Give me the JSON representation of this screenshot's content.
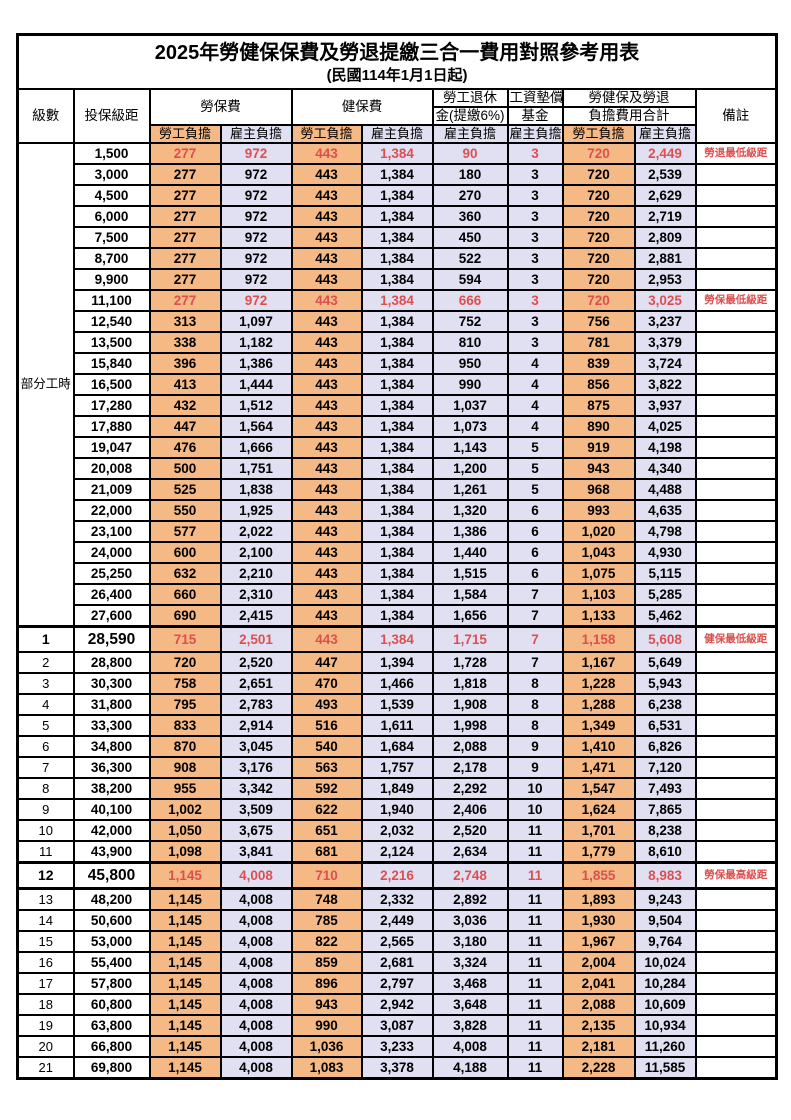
{
  "page": {
    "title": "2025年勞健保保費及勞退提繳三合一費用對照參考用表",
    "subtitle": "(民國114年1月1日起)"
  },
  "colors": {
    "employee_bg": "#F5B985",
    "employer_bg": "#E1E0F2",
    "highlight_red": "#DD4F4F"
  },
  "header": {
    "level": "級數",
    "bracket": "投保級距",
    "labor_insurance": "勞保費",
    "health_insurance": "健保費",
    "pension_line1": "勞工退休",
    "pension_line2": "金(提繳6%)",
    "wage_fund_line1": "工資墊償",
    "wage_fund_line2": "基金",
    "total_line1": "勞健保及勞退",
    "total_line2": "負擔費用合計",
    "remark": "備註",
    "employee_share": "勞工負擔",
    "employer_share": "雇主負擔"
  },
  "group_label": "部分工時",
  "rows": [
    {
      "level": "",
      "bracket": "1,500",
      "labor_emp": "277",
      "labor_er": "972",
      "health_emp": "443",
      "health_er": "1,384",
      "pension_er": "90",
      "fund_er": "3",
      "total_emp": "720",
      "total_er": "2,449",
      "remark": "勞退最低級距",
      "red": true
    },
    {
      "level": "",
      "bracket": "3,000",
      "labor_emp": "277",
      "labor_er": "972",
      "health_emp": "443",
      "health_er": "1,384",
      "pension_er": "180",
      "fund_er": "3",
      "total_emp": "720",
      "total_er": "2,539",
      "remark": ""
    },
    {
      "level": "",
      "bracket": "4,500",
      "labor_emp": "277",
      "labor_er": "972",
      "health_emp": "443",
      "health_er": "1,384",
      "pension_er": "270",
      "fund_er": "3",
      "total_emp": "720",
      "total_er": "2,629",
      "remark": ""
    },
    {
      "level": "",
      "bracket": "6,000",
      "labor_emp": "277",
      "labor_er": "972",
      "health_emp": "443",
      "health_er": "1,384",
      "pension_er": "360",
      "fund_er": "3",
      "total_emp": "720",
      "total_er": "2,719",
      "remark": ""
    },
    {
      "level": "",
      "bracket": "7,500",
      "labor_emp": "277",
      "labor_er": "972",
      "health_emp": "443",
      "health_er": "1,384",
      "pension_er": "450",
      "fund_er": "3",
      "total_emp": "720",
      "total_er": "2,809",
      "remark": ""
    },
    {
      "level": "",
      "bracket": "8,700",
      "labor_emp": "277",
      "labor_er": "972",
      "health_emp": "443",
      "health_er": "1,384",
      "pension_er": "522",
      "fund_er": "3",
      "total_emp": "720",
      "total_er": "2,881",
      "remark": ""
    },
    {
      "level": "",
      "bracket": "9,900",
      "labor_emp": "277",
      "labor_er": "972",
      "health_emp": "443",
      "health_er": "1,384",
      "pension_er": "594",
      "fund_er": "3",
      "total_emp": "720",
      "total_er": "2,953",
      "remark": ""
    },
    {
      "level": "",
      "bracket": "11,100",
      "labor_emp": "277",
      "labor_er": "972",
      "health_emp": "443",
      "health_er": "1,384",
      "pension_er": "666",
      "fund_er": "3",
      "total_emp": "720",
      "total_er": "3,025",
      "remark": "勞保最低級距",
      "red": true
    },
    {
      "level": "",
      "bracket": "12,540",
      "labor_emp": "313",
      "labor_er": "1,097",
      "health_emp": "443",
      "health_er": "1,384",
      "pension_er": "752",
      "fund_er": "3",
      "total_emp": "756",
      "total_er": "3,237",
      "remark": ""
    },
    {
      "level": "",
      "bracket": "13,500",
      "labor_emp": "338",
      "labor_er": "1,182",
      "health_emp": "443",
      "health_er": "1,384",
      "pension_er": "810",
      "fund_er": "3",
      "total_emp": "781",
      "total_er": "3,379",
      "remark": ""
    },
    {
      "level": "",
      "bracket": "15,840",
      "labor_emp": "396",
      "labor_er": "1,386",
      "health_emp": "443",
      "health_er": "1,384",
      "pension_er": "950",
      "fund_er": "4",
      "total_emp": "839",
      "total_er": "3,724",
      "remark": ""
    },
    {
      "level": "",
      "bracket": "16,500",
      "labor_emp": "413",
      "labor_er": "1,444",
      "health_emp": "443",
      "health_er": "1,384",
      "pension_er": "990",
      "fund_er": "4",
      "total_emp": "856",
      "total_er": "3,822",
      "remark": ""
    },
    {
      "level": "",
      "bracket": "17,280",
      "labor_emp": "432",
      "labor_er": "1,512",
      "health_emp": "443",
      "health_er": "1,384",
      "pension_er": "1,037",
      "fund_er": "4",
      "total_emp": "875",
      "total_er": "3,937",
      "remark": ""
    },
    {
      "level": "",
      "bracket": "17,880",
      "labor_emp": "447",
      "labor_er": "1,564",
      "health_emp": "443",
      "health_er": "1,384",
      "pension_er": "1,073",
      "fund_er": "4",
      "total_emp": "890",
      "total_er": "4,025",
      "remark": ""
    },
    {
      "level": "",
      "bracket": "19,047",
      "labor_emp": "476",
      "labor_er": "1,666",
      "health_emp": "443",
      "health_er": "1,384",
      "pension_er": "1,143",
      "fund_er": "5",
      "total_emp": "919",
      "total_er": "4,198",
      "remark": ""
    },
    {
      "level": "",
      "bracket": "20,008",
      "labor_emp": "500",
      "labor_er": "1,751",
      "health_emp": "443",
      "health_er": "1,384",
      "pension_er": "1,200",
      "fund_er": "5",
      "total_emp": "943",
      "total_er": "4,340",
      "remark": ""
    },
    {
      "level": "",
      "bracket": "21,009",
      "labor_emp": "525",
      "labor_er": "1,838",
      "health_emp": "443",
      "health_er": "1,384",
      "pension_er": "1,261",
      "fund_er": "5",
      "total_emp": "968",
      "total_er": "4,488",
      "remark": ""
    },
    {
      "level": "",
      "bracket": "22,000",
      "labor_emp": "550",
      "labor_er": "1,925",
      "health_emp": "443",
      "health_er": "1,384",
      "pension_er": "1,320",
      "fund_er": "6",
      "total_emp": "993",
      "total_er": "4,635",
      "remark": ""
    },
    {
      "level": "",
      "bracket": "23,100",
      "labor_emp": "577",
      "labor_er": "2,022",
      "health_emp": "443",
      "health_er": "1,384",
      "pension_er": "1,386",
      "fund_er": "6",
      "total_emp": "1,020",
      "total_er": "4,798",
      "remark": ""
    },
    {
      "level": "",
      "bracket": "24,000",
      "labor_emp": "600",
      "labor_er": "2,100",
      "health_emp": "443",
      "health_er": "1,384",
      "pension_er": "1,440",
      "fund_er": "6",
      "total_emp": "1,043",
      "total_er": "4,930",
      "remark": ""
    },
    {
      "level": "",
      "bracket": "25,250",
      "labor_emp": "632",
      "labor_er": "2,210",
      "health_emp": "443",
      "health_er": "1,384",
      "pension_er": "1,515",
      "fund_er": "6",
      "total_emp": "1,075",
      "total_er": "5,115",
      "remark": ""
    },
    {
      "level": "",
      "bracket": "26,400",
      "labor_emp": "660",
      "labor_er": "2,310",
      "health_emp": "443",
      "health_er": "1,384",
      "pension_er": "1,584",
      "fund_er": "7",
      "total_emp": "1,103",
      "total_er": "5,285",
      "remark": ""
    },
    {
      "level": "",
      "bracket": "27,600",
      "labor_emp": "690",
      "labor_er": "2,415",
      "health_emp": "443",
      "health_er": "1,384",
      "pension_er": "1,656",
      "fund_er": "7",
      "total_emp": "1,133",
      "total_er": "5,462",
      "remark": ""
    },
    {
      "level": "1",
      "bracket": "28,590",
      "labor_emp": "715",
      "labor_er": "2,501",
      "health_emp": "443",
      "health_er": "1,384",
      "pension_er": "1,715",
      "fund_er": "7",
      "total_emp": "1,158",
      "total_er": "5,608",
      "remark": "健保最低級距",
      "red": true,
      "major": true
    },
    {
      "level": "2",
      "bracket": "28,800",
      "labor_emp": "720",
      "labor_er": "2,520",
      "health_emp": "447",
      "health_er": "1,394",
      "pension_er": "1,728",
      "fund_er": "7",
      "total_emp": "1,167",
      "total_er": "5,649",
      "remark": ""
    },
    {
      "level": "3",
      "bracket": "30,300",
      "labor_emp": "758",
      "labor_er": "2,651",
      "health_emp": "470",
      "health_er": "1,466",
      "pension_er": "1,818",
      "fund_er": "8",
      "total_emp": "1,228",
      "total_er": "5,943",
      "remark": ""
    },
    {
      "level": "4",
      "bracket": "31,800",
      "labor_emp": "795",
      "labor_er": "2,783",
      "health_emp": "493",
      "health_er": "1,539",
      "pension_er": "1,908",
      "fund_er": "8",
      "total_emp": "1,288",
      "total_er": "6,238",
      "remark": ""
    },
    {
      "level": "5",
      "bracket": "33,300",
      "labor_emp": "833",
      "labor_er": "2,914",
      "health_emp": "516",
      "health_er": "1,611",
      "pension_er": "1,998",
      "fund_er": "8",
      "total_emp": "1,349",
      "total_er": "6,531",
      "remark": ""
    },
    {
      "level": "6",
      "bracket": "34,800",
      "labor_emp": "870",
      "labor_er": "3,045",
      "health_emp": "540",
      "health_er": "1,684",
      "pension_er": "2,088",
      "fund_er": "9",
      "total_emp": "1,410",
      "total_er": "6,826",
      "remark": ""
    },
    {
      "level": "7",
      "bracket": "36,300",
      "labor_emp": "908",
      "labor_er": "3,176",
      "health_emp": "563",
      "health_er": "1,757",
      "pension_er": "2,178",
      "fund_er": "9",
      "total_emp": "1,471",
      "total_er": "7,120",
      "remark": ""
    },
    {
      "level": "8",
      "bracket": "38,200",
      "labor_emp": "955",
      "labor_er": "3,342",
      "health_emp": "592",
      "health_er": "1,849",
      "pension_er": "2,292",
      "fund_er": "10",
      "total_emp": "1,547",
      "total_er": "7,493",
      "remark": ""
    },
    {
      "level": "9",
      "bracket": "40,100",
      "labor_emp": "1,002",
      "labor_er": "3,509",
      "health_emp": "622",
      "health_er": "1,940",
      "pension_er": "2,406",
      "fund_er": "10",
      "total_emp": "1,624",
      "total_er": "7,865",
      "remark": ""
    },
    {
      "level": "10",
      "bracket": "42,000",
      "labor_emp": "1,050",
      "labor_er": "3,675",
      "health_emp": "651",
      "health_er": "2,032",
      "pension_er": "2,520",
      "fund_er": "11",
      "total_emp": "1,701",
      "total_er": "8,238",
      "remark": ""
    },
    {
      "level": "11",
      "bracket": "43,900",
      "labor_emp": "1,098",
      "labor_er": "3,841",
      "health_emp": "681",
      "health_er": "2,124",
      "pension_er": "2,634",
      "fund_er": "11",
      "total_emp": "1,779",
      "total_er": "8,610",
      "remark": ""
    },
    {
      "level": "12",
      "bracket": "45,800",
      "labor_emp": "1,145",
      "labor_er": "4,008",
      "health_emp": "710",
      "health_er": "2,216",
      "pension_er": "2,748",
      "fund_er": "11",
      "total_emp": "1,855",
      "total_er": "8,983",
      "remark": "勞保最高級距",
      "red": true,
      "major": true,
      "thick_bottom": true
    },
    {
      "level": "13",
      "bracket": "48,200",
      "labor_emp": "1,145",
      "labor_er": "4,008",
      "health_emp": "748",
      "health_er": "2,332",
      "pension_er": "2,892",
      "fund_er": "11",
      "total_emp": "1,893",
      "total_er": "9,243",
      "remark": ""
    },
    {
      "level": "14",
      "bracket": "50,600",
      "labor_emp": "1,145",
      "labor_er": "4,008",
      "health_emp": "785",
      "health_er": "2,449",
      "pension_er": "3,036",
      "fund_er": "11",
      "total_emp": "1,930",
      "total_er": "9,504",
      "remark": ""
    },
    {
      "level": "15",
      "bracket": "53,000",
      "labor_emp": "1,145",
      "labor_er": "4,008",
      "health_emp": "822",
      "health_er": "2,565",
      "pension_er": "3,180",
      "fund_er": "11",
      "total_emp": "1,967",
      "total_er": "9,764",
      "remark": ""
    },
    {
      "level": "16",
      "bracket": "55,400",
      "labor_emp": "1,145",
      "labor_er": "4,008",
      "health_emp": "859",
      "health_er": "2,681",
      "pension_er": "3,324",
      "fund_er": "11",
      "total_emp": "2,004",
      "total_er": "10,024",
      "remark": ""
    },
    {
      "level": "17",
      "bracket": "57,800",
      "labor_emp": "1,145",
      "labor_er": "4,008",
      "health_emp": "896",
      "health_er": "2,797",
      "pension_er": "3,468",
      "fund_er": "11",
      "total_emp": "2,041",
      "total_er": "10,284",
      "remark": ""
    },
    {
      "level": "18",
      "bracket": "60,800",
      "labor_emp": "1,145",
      "labor_er": "4,008",
      "health_emp": "943",
      "health_er": "2,942",
      "pension_er": "3,648",
      "fund_er": "11",
      "total_emp": "2,088",
      "total_er": "10,609",
      "remark": ""
    },
    {
      "level": "19",
      "bracket": "63,800",
      "labor_emp": "1,145",
      "labor_er": "4,008",
      "health_emp": "990",
      "health_er": "3,087",
      "pension_er": "3,828",
      "fund_er": "11",
      "total_emp": "2,135",
      "total_er": "10,934",
      "remark": ""
    },
    {
      "level": "20",
      "bracket": "66,800",
      "labor_emp": "1,145",
      "labor_er": "4,008",
      "health_emp": "1,036",
      "health_er": "3,233",
      "pension_er": "4,008",
      "fund_er": "11",
      "total_emp": "2,181",
      "total_er": "11,260",
      "remark": ""
    },
    {
      "level": "21",
      "bracket": "69,800",
      "labor_emp": "1,145",
      "labor_er": "4,008",
      "health_emp": "1,083",
      "health_er": "3,378",
      "pension_er": "4,188",
      "fund_er": "11",
      "total_emp": "2,228",
      "total_er": "11,585",
      "remark": ""
    }
  ]
}
